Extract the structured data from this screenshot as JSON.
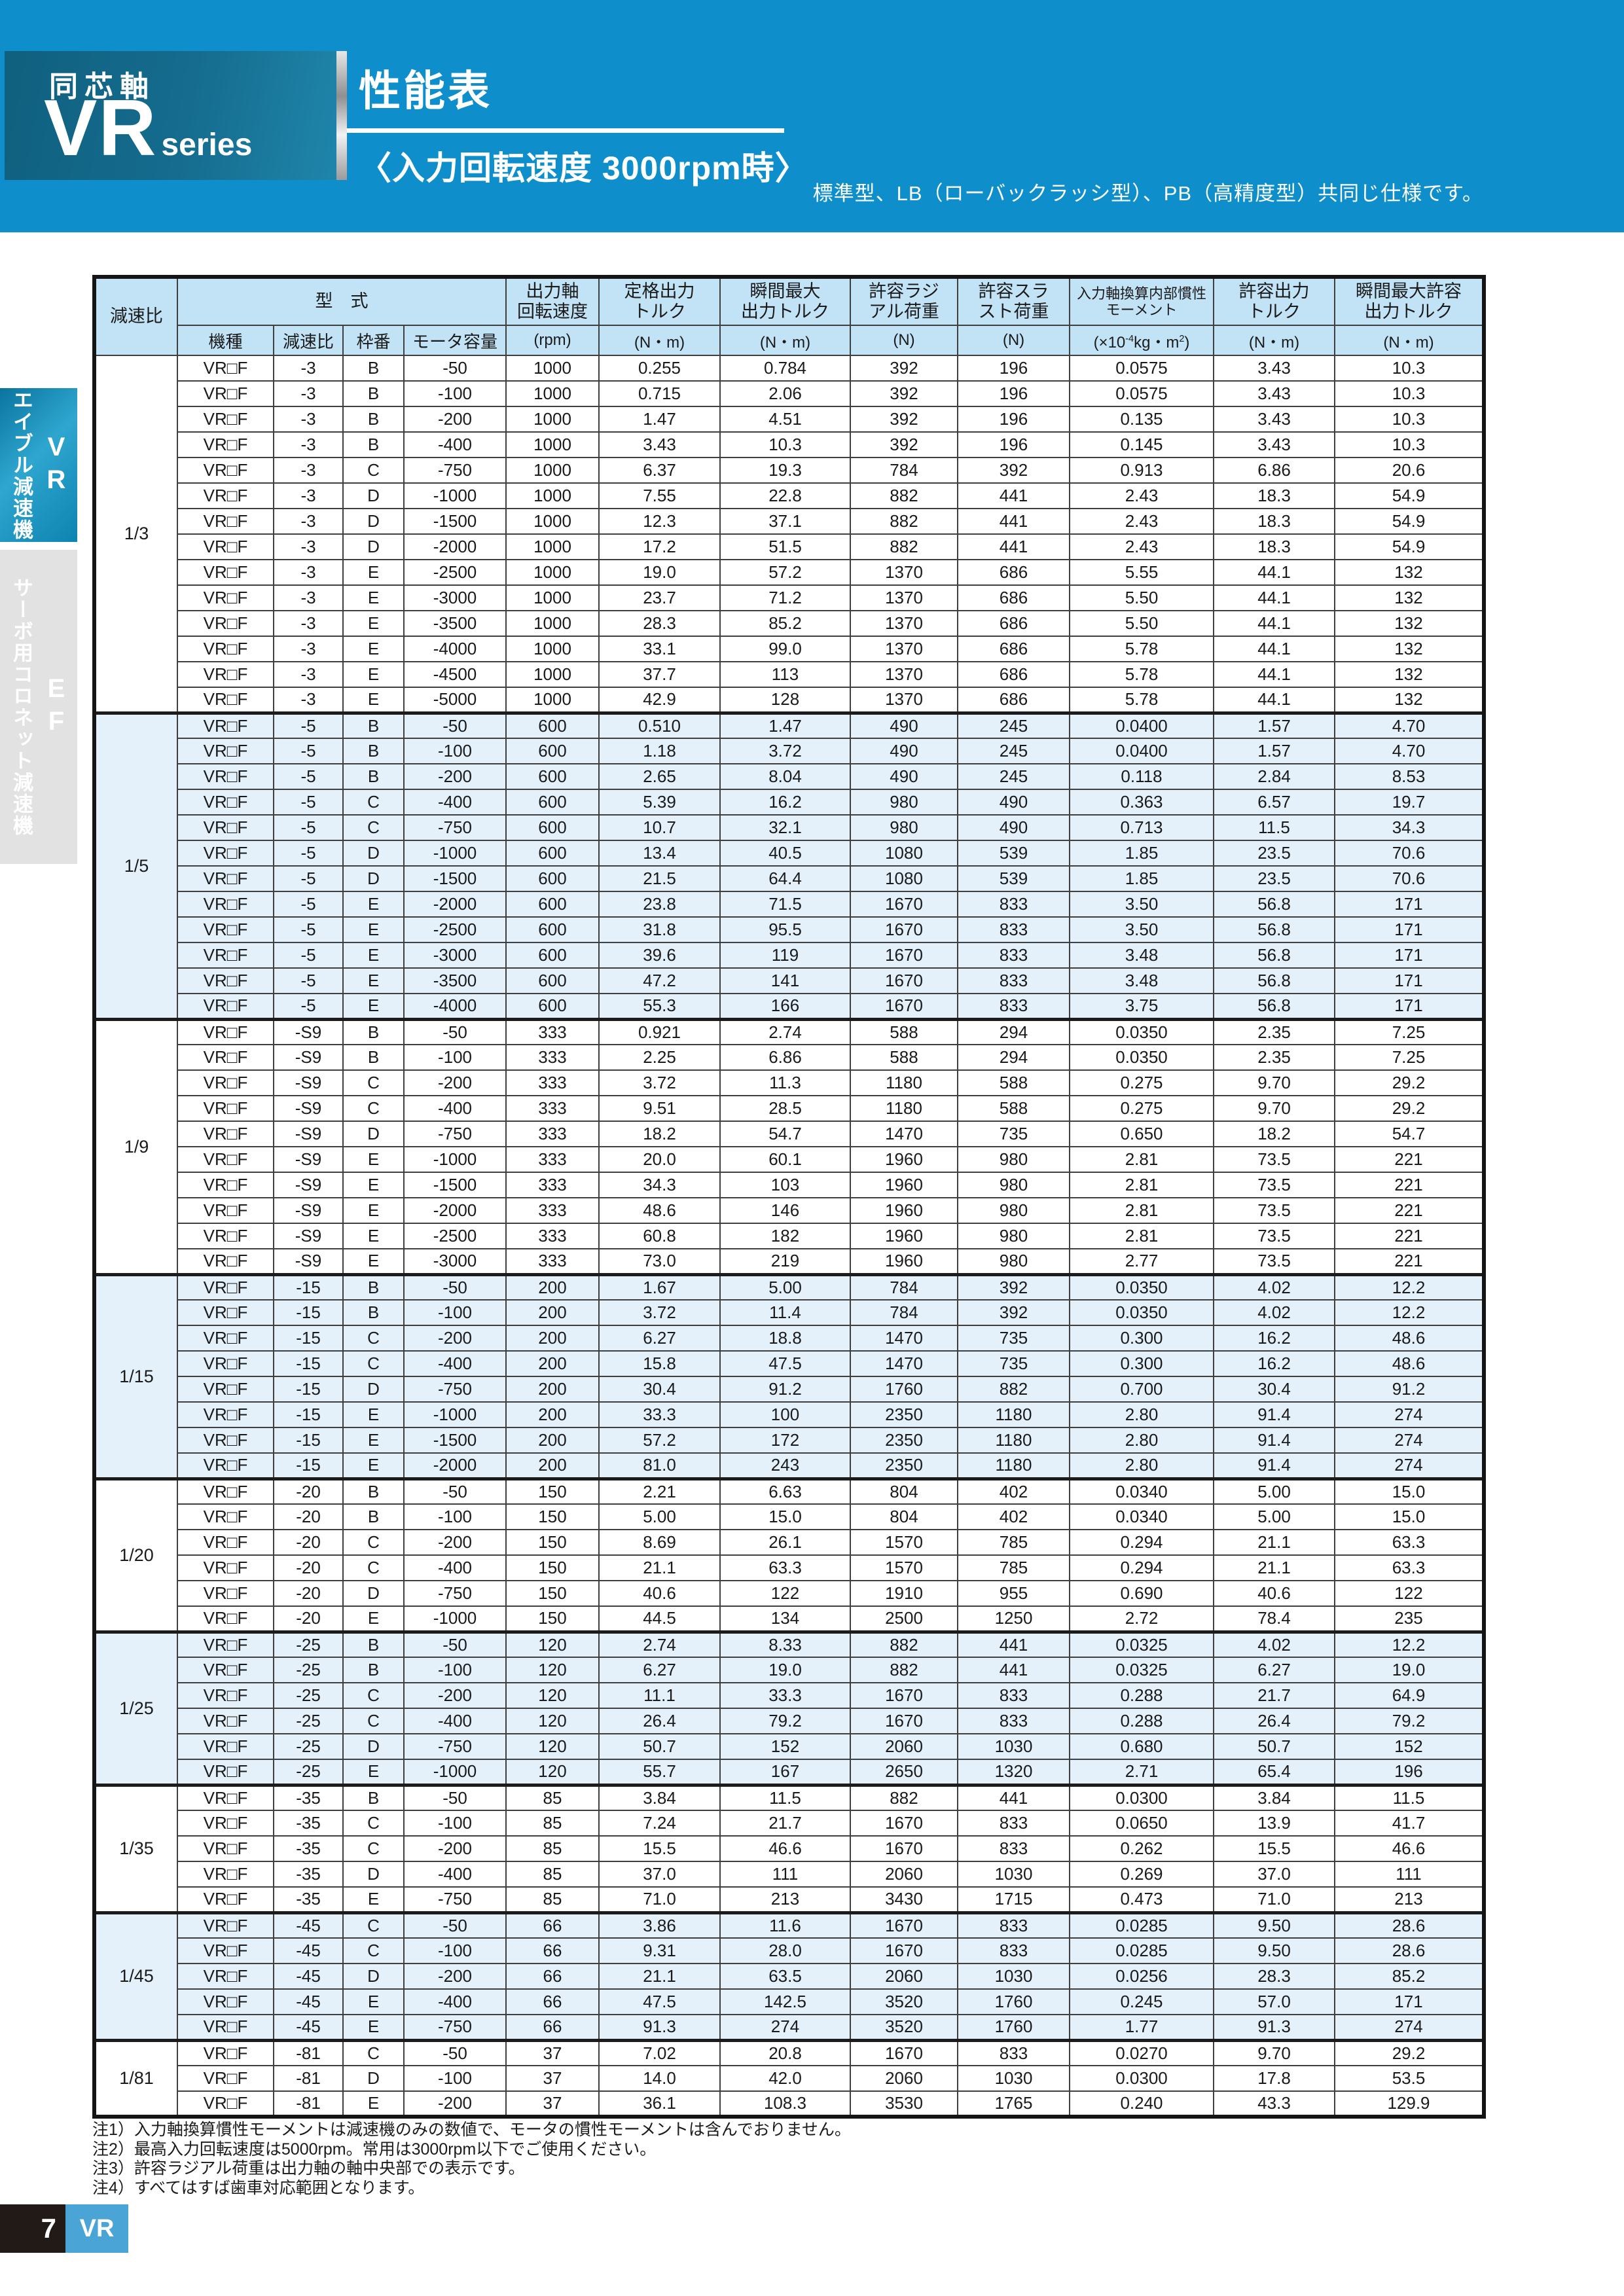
{
  "page": {
    "brand_axis": "同芯軸",
    "brand_series_main": "VR",
    "brand_series_sub": "series",
    "title": "性能表",
    "subtitle": "〈入力回転速度 3000rpm時〉",
    "note_top": "標準型、LB（ローバックラッシ型）、PB（高精度型）共同じ仕様です。"
  },
  "sidebar": {
    "tab_vr": {
      "label": "エイブル減速機",
      "code": "VR"
    },
    "tab_ef": {
      "label": "サーボ用コロネット減速機",
      "code": "EF"
    }
  },
  "table": {
    "machine": "VR□F",
    "header": {
      "ratio": "減速比",
      "model": "型　式",
      "sub_model": [
        "機種",
        "減速比",
        "枠番",
        "モータ容量"
      ],
      "cols": [
        {
          "l1": "出力軸",
          "l2": "回転速度",
          "unit": "(rpm)"
        },
        {
          "l1": "定格出力",
          "l2": "トルク",
          "unit": "(N・m)"
        },
        {
          "l1": "瞬間最大",
          "l2": "出力トルク",
          "unit": "(N・m)"
        },
        {
          "l1": "許容ラジ",
          "l2": "アル荷重",
          "unit": "(N)"
        },
        {
          "l1": "許容スラ",
          "l2": "スト荷重",
          "unit": "(N)"
        },
        {
          "l1": "入力軸換算内部慣性",
          "l2": "モーメント",
          "unit": ""
        },
        {
          "l1": "許容出力",
          "l2": "トルク",
          "unit": "(N・m)"
        },
        {
          "l1": "瞬間最大許容",
          "l2": "出力トルク",
          "unit": "(N・m)"
        }
      ],
      "inertia_unit_parts": [
        "(×10",
        "-4",
        "kg・m",
        "2",
        ")"
      ]
    },
    "groups": [
      {
        "ratio": "1/3",
        "gear": "-3",
        "rpm": "1000",
        "tinted": false,
        "rows": [
          [
            "B",
            "-50",
            "0.255",
            "0.784",
            "392",
            "196",
            "0.0575",
            "3.43",
            "10.3"
          ],
          [
            "B",
            "-100",
            "0.715",
            "2.06",
            "392",
            "196",
            "0.0575",
            "3.43",
            "10.3"
          ],
          [
            "B",
            "-200",
            "1.47",
            "4.51",
            "392",
            "196",
            "0.135",
            "3.43",
            "10.3"
          ],
          [
            "B",
            "-400",
            "3.43",
            "10.3",
            "392",
            "196",
            "0.145",
            "3.43",
            "10.3"
          ],
          [
            "C",
            "-750",
            "6.37",
            "19.3",
            "784",
            "392",
            "0.913",
            "6.86",
            "20.6"
          ],
          [
            "D",
            "-1000",
            "7.55",
            "22.8",
            "882",
            "441",
            "2.43",
            "18.3",
            "54.9"
          ],
          [
            "D",
            "-1500",
            "12.3",
            "37.1",
            "882",
            "441",
            "2.43",
            "18.3",
            "54.9"
          ],
          [
            "D",
            "-2000",
            "17.2",
            "51.5",
            "882",
            "441",
            "2.43",
            "18.3",
            "54.9"
          ],
          [
            "E",
            "-2500",
            "19.0",
            "57.2",
            "1370",
            "686",
            "5.55",
            "44.1",
            "132"
          ],
          [
            "E",
            "-3000",
            "23.7",
            "71.2",
            "1370",
            "686",
            "5.50",
            "44.1",
            "132"
          ],
          [
            "E",
            "-3500",
            "28.3",
            "85.2",
            "1370",
            "686",
            "5.50",
            "44.1",
            "132"
          ],
          [
            "E",
            "-4000",
            "33.1",
            "99.0",
            "1370",
            "686",
            "5.78",
            "44.1",
            "132"
          ],
          [
            "E",
            "-4500",
            "37.7",
            "113",
            "1370",
            "686",
            "5.78",
            "44.1",
            "132"
          ],
          [
            "E",
            "-5000",
            "42.9",
            "128",
            "1370",
            "686",
            "5.78",
            "44.1",
            "132"
          ]
        ]
      },
      {
        "ratio": "1/5",
        "gear": "-5",
        "rpm": "600",
        "tinted": true,
        "rows": [
          [
            "B",
            "-50",
            "0.510",
            "1.47",
            "490",
            "245",
            "0.0400",
            "1.57",
            "4.70"
          ],
          [
            "B",
            "-100",
            "1.18",
            "3.72",
            "490",
            "245",
            "0.0400",
            "1.57",
            "4.70"
          ],
          [
            "B",
            "-200",
            "2.65",
            "8.04",
            "490",
            "245",
            "0.118",
            "2.84",
            "8.53"
          ],
          [
            "C",
            "-400",
            "5.39",
            "16.2",
            "980",
            "490",
            "0.363",
            "6.57",
            "19.7"
          ],
          [
            "C",
            "-750",
            "10.7",
            "32.1",
            "980",
            "490",
            "0.713",
            "11.5",
            "34.3"
          ],
          [
            "D",
            "-1000",
            "13.4",
            "40.5",
            "1080",
            "539",
            "1.85",
            "23.5",
            "70.6"
          ],
          [
            "D",
            "-1500",
            "21.5",
            "64.4",
            "1080",
            "539",
            "1.85",
            "23.5",
            "70.6"
          ],
          [
            "E",
            "-2000",
            "23.8",
            "71.5",
            "1670",
            "833",
            "3.50",
            "56.8",
            "171"
          ],
          [
            "E",
            "-2500",
            "31.8",
            "95.5",
            "1670",
            "833",
            "3.50",
            "56.8",
            "171"
          ],
          [
            "E",
            "-3000",
            "39.6",
            "119",
            "1670",
            "833",
            "3.48",
            "56.8",
            "171"
          ],
          [
            "E",
            "-3500",
            "47.2",
            "141",
            "1670",
            "833",
            "3.48",
            "56.8",
            "171"
          ],
          [
            "E",
            "-4000",
            "55.3",
            "166",
            "1670",
            "833",
            "3.75",
            "56.8",
            "171"
          ]
        ]
      },
      {
        "ratio": "1/9",
        "gear": "-S9",
        "rpm": "333",
        "tinted": false,
        "rows": [
          [
            "B",
            "-50",
            "0.921",
            "2.74",
            "588",
            "294",
            "0.0350",
            "2.35",
            "7.25"
          ],
          [
            "B",
            "-100",
            "2.25",
            "6.86",
            "588",
            "294",
            "0.0350",
            "2.35",
            "7.25"
          ],
          [
            "C",
            "-200",
            "3.72",
            "11.3",
            "1180",
            "588",
            "0.275",
            "9.70",
            "29.2"
          ],
          [
            "C",
            "-400",
            "9.51",
            "28.5",
            "1180",
            "588",
            "0.275",
            "9.70",
            "29.2"
          ],
          [
            "D",
            "-750",
            "18.2",
            "54.7",
            "1470",
            "735",
            "0.650",
            "18.2",
            "54.7"
          ],
          [
            "E",
            "-1000",
            "20.0",
            "60.1",
            "1960",
            "980",
            "2.81",
            "73.5",
            "221"
          ],
          [
            "E",
            "-1500",
            "34.3",
            "103",
            "1960",
            "980",
            "2.81",
            "73.5",
            "221"
          ],
          [
            "E",
            "-2000",
            "48.6",
            "146",
            "1960",
            "980",
            "2.81",
            "73.5",
            "221"
          ],
          [
            "E",
            "-2500",
            "60.8",
            "182",
            "1960",
            "980",
            "2.81",
            "73.5",
            "221"
          ],
          [
            "E",
            "-3000",
            "73.0",
            "219",
            "1960",
            "980",
            "2.77",
            "73.5",
            "221"
          ]
        ]
      },
      {
        "ratio": "1/15",
        "gear": "-15",
        "rpm": "200",
        "tinted": true,
        "rows": [
          [
            "B",
            "-50",
            "1.67",
            "5.00",
            "784",
            "392",
            "0.0350",
            "4.02",
            "12.2"
          ],
          [
            "B",
            "-100",
            "3.72",
            "11.4",
            "784",
            "392",
            "0.0350",
            "4.02",
            "12.2"
          ],
          [
            "C",
            "-200",
            "6.27",
            "18.8",
            "1470",
            "735",
            "0.300",
            "16.2",
            "48.6"
          ],
          [
            "C",
            "-400",
            "15.8",
            "47.5",
            "1470",
            "735",
            "0.300",
            "16.2",
            "48.6"
          ],
          [
            "D",
            "-750",
            "30.4",
            "91.2",
            "1760",
            "882",
            "0.700",
            "30.4",
            "91.2"
          ],
          [
            "E",
            "-1000",
            "33.3",
            "100",
            "2350",
            "1180",
            "2.80",
            "91.4",
            "274"
          ],
          [
            "E",
            "-1500",
            "57.2",
            "172",
            "2350",
            "1180",
            "2.80",
            "91.4",
            "274"
          ],
          [
            "E",
            "-2000",
            "81.0",
            "243",
            "2350",
            "1180",
            "2.80",
            "91.4",
            "274"
          ]
        ]
      },
      {
        "ratio": "1/20",
        "gear": "-20",
        "rpm": "150",
        "tinted": false,
        "rows": [
          [
            "B",
            "-50",
            "2.21",
            "6.63",
            "804",
            "402",
            "0.0340",
            "5.00",
            "15.0"
          ],
          [
            "B",
            "-100",
            "5.00",
            "15.0",
            "804",
            "402",
            "0.0340",
            "5.00",
            "15.0"
          ],
          [
            "C",
            "-200",
            "8.69",
            "26.1",
            "1570",
            "785",
            "0.294",
            "21.1",
            "63.3"
          ],
          [
            "C",
            "-400",
            "21.1",
            "63.3",
            "1570",
            "785",
            "0.294",
            "21.1",
            "63.3"
          ],
          [
            "D",
            "-750",
            "40.6",
            "122",
            "1910",
            "955",
            "0.690",
            "40.6",
            "122"
          ],
          [
            "E",
            "-1000",
            "44.5",
            "134",
            "2500",
            "1250",
            "2.72",
            "78.4",
            "235"
          ]
        ]
      },
      {
        "ratio": "1/25",
        "gear": "-25",
        "rpm": "120",
        "tinted": true,
        "rows": [
          [
            "B",
            "-50",
            "2.74",
            "8.33",
            "882",
            "441",
            "0.0325",
            "4.02",
            "12.2"
          ],
          [
            "B",
            "-100",
            "6.27",
            "19.0",
            "882",
            "441",
            "0.0325",
            "6.27",
            "19.0"
          ],
          [
            "C",
            "-200",
            "11.1",
            "33.3",
            "1670",
            "833",
            "0.288",
            "21.7",
            "64.9"
          ],
          [
            "C",
            "-400",
            "26.4",
            "79.2",
            "1670",
            "833",
            "0.288",
            "26.4",
            "79.2"
          ],
          [
            "D",
            "-750",
            "50.7",
            "152",
            "2060",
            "1030",
            "0.680",
            "50.7",
            "152"
          ],
          [
            "E",
            "-1000",
            "55.7",
            "167",
            "2650",
            "1320",
            "2.71",
            "65.4",
            "196"
          ]
        ]
      },
      {
        "ratio": "1/35",
        "gear": "-35",
        "rpm": "85",
        "tinted": false,
        "rows": [
          [
            "B",
            "-50",
            "3.84",
            "11.5",
            "882",
            "441",
            "0.0300",
            "3.84",
            "11.5"
          ],
          [
            "C",
            "-100",
            "7.24",
            "21.7",
            "1670",
            "833",
            "0.0650",
            "13.9",
            "41.7"
          ],
          [
            "C",
            "-200",
            "15.5",
            "46.6",
            "1670",
            "833",
            "0.262",
            "15.5",
            "46.6"
          ],
          [
            "D",
            "-400",
            "37.0",
            "111",
            "2060",
            "1030",
            "0.269",
            "37.0",
            "111"
          ],
          [
            "E",
            "-750",
            "71.0",
            "213",
            "3430",
            "1715",
            "0.473",
            "71.0",
            "213"
          ]
        ]
      },
      {
        "ratio": "1/45",
        "gear": "-45",
        "rpm": "66",
        "tinted": true,
        "rows": [
          [
            "C",
            "-50",
            "3.86",
            "11.6",
            "1670",
            "833",
            "0.0285",
            "9.50",
            "28.6"
          ],
          [
            "C",
            "-100",
            "9.31",
            "28.0",
            "1670",
            "833",
            "0.0285",
            "9.50",
            "28.6"
          ],
          [
            "D",
            "-200",
            "21.1",
            "63.5",
            "2060",
            "1030",
            "0.0256",
            "28.3",
            "85.2"
          ],
          [
            "E",
            "-400",
            "47.5",
            "142.5",
            "3520",
            "1760",
            "0.245",
            "57.0",
            "171"
          ],
          [
            "E",
            "-750",
            "91.3",
            "274",
            "3520",
            "1760",
            "1.77",
            "91.3",
            "274"
          ]
        ]
      },
      {
        "ratio": "1/81",
        "gear": "-81",
        "rpm": "37",
        "tinted": false,
        "rows": [
          [
            "C",
            "-50",
            "7.02",
            "20.8",
            "1670",
            "833",
            "0.0270",
            "9.70",
            "29.2"
          ],
          [
            "D",
            "-100",
            "14.0",
            "42.0",
            "2060",
            "1030",
            "0.0300",
            "17.8",
            "53.5"
          ],
          [
            "E",
            "-200",
            "36.1",
            "108.3",
            "3530",
            "1765",
            "0.240",
            "43.3",
            "129.9"
          ]
        ]
      }
    ]
  },
  "notes": [
    "注1）入力軸換算慣性モーメントは減速機のみの数値で、モータの慣性モーメントは含んでおりません。",
    "注2）最高入力回転速度は5000rpm。常用は3000rpm以下でご使用ください。",
    "注3）許容ラジアル荷重は出力軸の軸中央部での表示です。",
    "注4）すべてはすば歯車対応範囲となります。"
  ],
  "footer": {
    "page_number": "7",
    "series_code": "VR"
  }
}
